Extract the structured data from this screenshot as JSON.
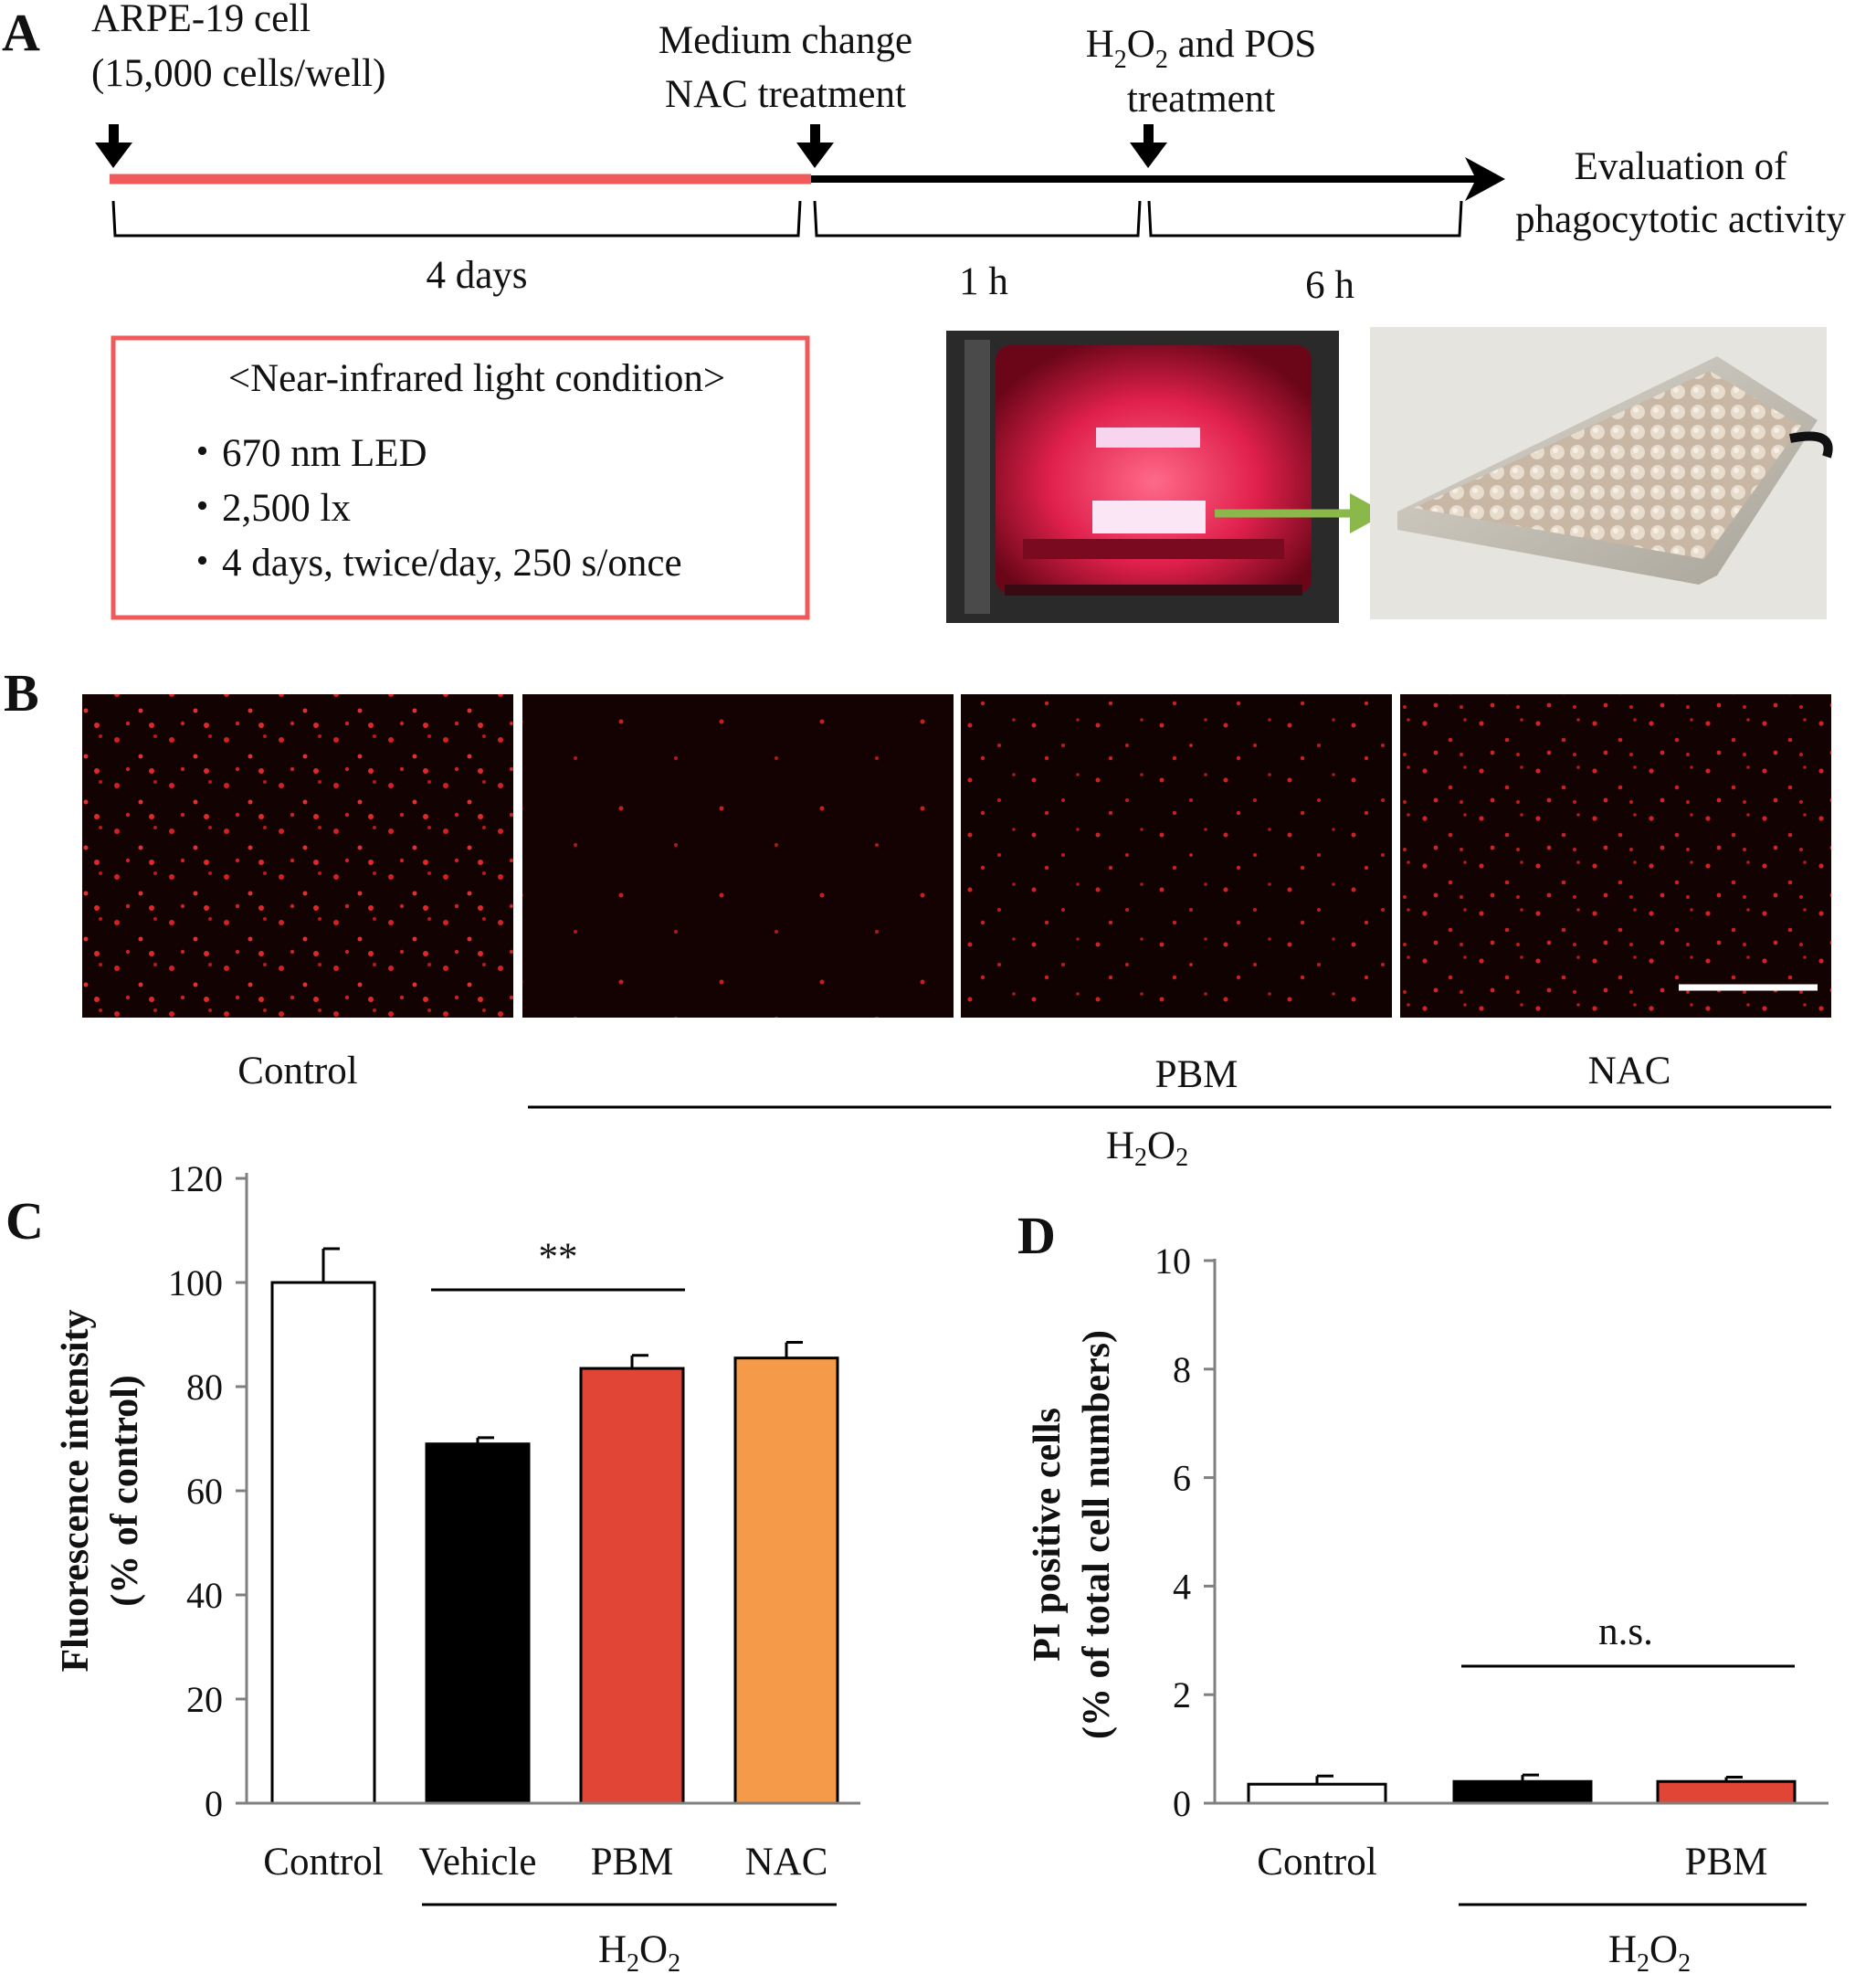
{
  "panels": {
    "a": {
      "letter": "A",
      "step1_line1": "ARPE-19 cell",
      "step1_line2": "(15,000 cells/well)",
      "step2_line1": "Medium change",
      "step2_line2": "NAC treatment",
      "step3_line1_a": "H",
      "step3_line1_sub": "2",
      "step3_line1_b": "O",
      "step3_line1_sub2": "2",
      "step3_line1_c": " and POS",
      "step3_line2": "treatment",
      "end_line1": "Evaluation of",
      "end_line2": "phagocytotic activity",
      "dur1": "4 days",
      "dur2": "1 h",
      "dur3": "6 h",
      "condition_title": "<Near-infrared light condition>",
      "conditions": [
        "670 nm LED",
        "2,500 lx",
        "4 days, twice/day, 250 s/once"
      ],
      "bullet": "・",
      "colors": {
        "irradiation": "#f05a5a",
        "arrow": "#8ab84a",
        "incubator_glow": "#e0204c"
      }
    },
    "b": {
      "letter": "B",
      "label_control": "Control",
      "label_pbm": "PBM",
      "label_nac": "NAC",
      "group_a": "H",
      "group_sub": "2",
      "group_b": "O",
      "group_sub2": "2"
    },
    "c": {
      "letter": "C",
      "ylabel_line1": "Fluorescence intensity",
      "ylabel_line2": "(% of control)",
      "sig": "**"
    },
    "d": {
      "letter": "D",
      "ylabel_line1": "PI positive cells",
      "ylabel_line2": "(% of total cell numbers)",
      "sig": "n.s."
    }
  },
  "chart_data": [
    {
      "type": "bar",
      "panel": "C",
      "categories": [
        "Control",
        "Vehicle",
        "PBM",
        "NAC"
      ],
      "values": [
        100,
        69,
        83.5,
        85.5
      ],
      "errors": [
        6.5,
        1.2,
        2.5,
        3
      ],
      "colors": [
        "#ffffff",
        "#000000",
        "#e04535",
        "#f49a48"
      ],
      "group_label": "H2O2",
      "group_categories": [
        "Vehicle",
        "PBM",
        "NAC"
      ],
      "significance": {
        "between": [
          "Vehicle",
          "PBM"
        ],
        "label": "**"
      },
      "xlabel": "",
      "ylabel": "Fluorescence intensity (% of control)",
      "ylim": [
        0,
        120
      ],
      "yticks": [
        0,
        20,
        40,
        60,
        80,
        100,
        120
      ]
    },
    {
      "type": "bar",
      "panel": "D",
      "categories": [
        "Control",
        "",
        "PBM"
      ],
      "values": [
        0.35,
        0.4,
        0.4
      ],
      "errors": [
        0.15,
        0.12,
        0.08
      ],
      "colors": [
        "#ffffff",
        "#000000",
        "#e04535"
      ],
      "group_label": "H2O2",
      "significance": {
        "label": "n.s."
      },
      "xlabel": "",
      "ylabel": "PI positive cells (% of total cell numbers)",
      "ylim": [
        0,
        10
      ],
      "yticks": [
        0,
        2,
        4,
        6,
        8,
        10
      ]
    }
  ]
}
